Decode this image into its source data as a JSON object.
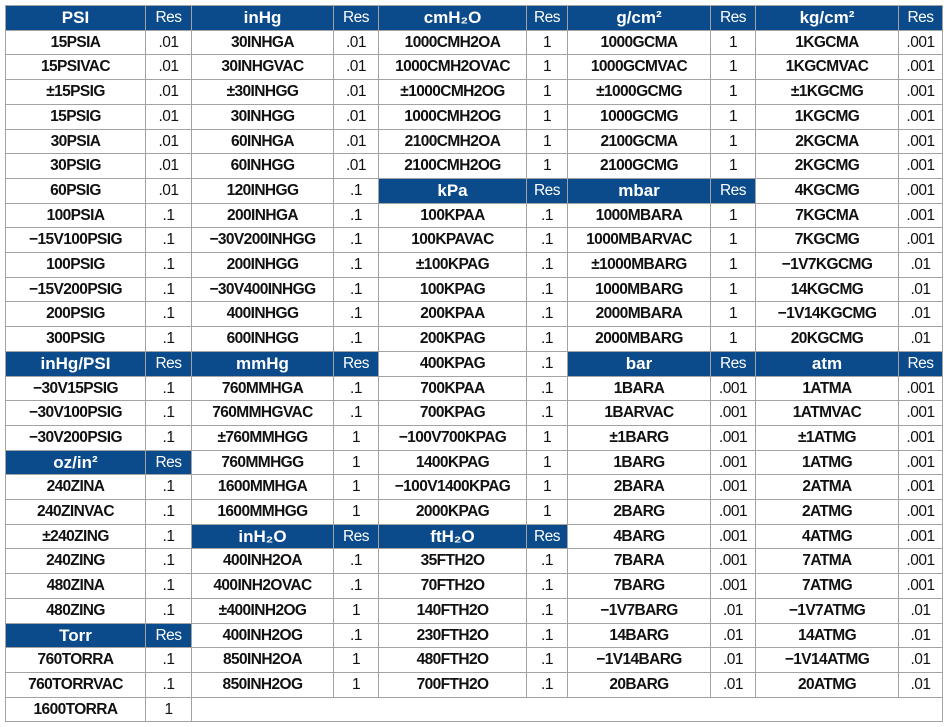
{
  "colors": {
    "header_bg": "#0b4b8c",
    "header_text": "#ffffff",
    "border": "#a3a3a3"
  },
  "groups": [
    {
      "cells": [
        {
          "h": "PSI",
          "r": "Res"
        },
        {
          "n": "15PSIA",
          "r": ".01"
        },
        {
          "n": "15PSIVAC",
          "r": ".01"
        },
        {
          "n": "±15PSIG",
          "r": ".01"
        },
        {
          "n": "15PSIG",
          "r": ".01"
        },
        {
          "n": "30PSIA",
          "r": ".01"
        },
        {
          "n": "30PSIG",
          "r": ".01"
        },
        {
          "n": "60PSIG",
          "r": ".01"
        },
        {
          "n": "100PSIA",
          "r": ".1"
        },
        {
          "n": "−15V100PSIG",
          "r": ".1"
        },
        {
          "n": "100PSIG",
          "r": ".1"
        },
        {
          "n": "−15V200PSIG",
          "r": ".1"
        },
        {
          "n": "200PSIG",
          "r": ".1"
        },
        {
          "n": "300PSIG",
          "r": ".1"
        },
        {
          "h": "inHg/PSI",
          "r": "Res"
        },
        {
          "n": "−30V15PSIG",
          "r": ".1"
        },
        {
          "n": "−30V100PSIG",
          "r": ".1"
        },
        {
          "n": "−30V200PSIG",
          "r": ".1"
        },
        {
          "h": "oz/in²",
          "r": "Res"
        },
        {
          "n": "240ZINA",
          "r": ".1"
        },
        {
          "n": "240ZINVAC",
          "r": ".1"
        },
        {
          "n": "±240ZING",
          "r": ".1"
        },
        {
          "n": "240ZING",
          "r": ".1"
        },
        {
          "n": "480ZINA",
          "r": ".1"
        },
        {
          "n": "480ZING",
          "r": ".1"
        },
        {
          "h": "Torr",
          "r": "Res"
        },
        {
          "n": "760TORRA",
          "r": ".1"
        },
        {
          "n": "760TORRVAC",
          "r": ".1"
        },
        {
          "n": "1600TORRA",
          "r": "1"
        }
      ]
    },
    {
      "cells": [
        {
          "h": "inHg",
          "r": "Res"
        },
        {
          "n": "30INHGA",
          "r": ".01"
        },
        {
          "n": "30INHGVAC",
          "r": ".01"
        },
        {
          "n": "±30INHGG",
          "r": ".01"
        },
        {
          "n": "30INHGG",
          "r": ".01"
        },
        {
          "n": "60INHGA",
          "r": ".01"
        },
        {
          "n": "60INHGG",
          "r": ".01"
        },
        {
          "n": "120INHGG",
          "r": ".1"
        },
        {
          "n": "200INHGA",
          "r": ".1"
        },
        {
          "n": "−30V200INHGG",
          "r": ".1"
        },
        {
          "n": "200INHGG",
          "r": ".1"
        },
        {
          "n": "−30V400INHGG",
          "r": ".1"
        },
        {
          "n": "400INHGG",
          "r": ".1"
        },
        {
          "n": "600INHGG",
          "r": ".1"
        },
        {
          "h": "mmHg",
          "r": "Res"
        },
        {
          "n": "760MMHGA",
          "r": ".1"
        },
        {
          "n": "760MMHGVAC",
          "r": ".1"
        },
        {
          "n": "±760MMHGG",
          "r": "1"
        },
        {
          "n": "760MMHGG",
          "r": "1"
        },
        {
          "n": "1600MMHGA",
          "r": "1"
        },
        {
          "n": "1600MMHGG",
          "r": "1"
        },
        {
          "h": "inH₂O",
          "r": "Res"
        },
        {
          "n": "400INH2OA",
          "r": ".1"
        },
        {
          "n": "400INH2OVAC",
          "r": ".1"
        },
        {
          "n": "±400INH2OG",
          "r": "1"
        },
        {
          "n": "400INH2OG",
          "r": ".1"
        },
        {
          "n": "850INH2OA",
          "r": "1"
        },
        {
          "n": "850INH2OG",
          "r": "1"
        }
      ]
    },
    {
      "cells": [
        {
          "h": "cmH₂O",
          "r": "Res"
        },
        {
          "n": "1000CMH2OA",
          "r": "1"
        },
        {
          "n": "1000CMH2OVAC",
          "r": "1"
        },
        {
          "n": "±1000CMH2OG",
          "r": "1"
        },
        {
          "n": "1000CMH2OG",
          "r": "1"
        },
        {
          "n": "2100CMH2OA",
          "r": "1"
        },
        {
          "n": "2100CMH2OG",
          "r": "1"
        },
        {
          "h": "kPa",
          "r": "Res"
        },
        {
          "n": "100KPAA",
          "r": ".1"
        },
        {
          "n": "100KPAVAC",
          "r": ".1"
        },
        {
          "n": "±100KPAG",
          "r": ".1"
        },
        {
          "n": "100KPAG",
          "r": ".1"
        },
        {
          "n": "200KPAA",
          "r": ".1"
        },
        {
          "n": "200KPAG",
          "r": ".1"
        },
        {
          "n": "400KPAG",
          "r": ".1"
        },
        {
          "n": "700KPAA",
          "r": ".1"
        },
        {
          "n": "700KPAG",
          "r": ".1"
        },
        {
          "n": "−100V700KPAG",
          "r": "1"
        },
        {
          "n": "1400KPAG",
          "r": "1"
        },
        {
          "n": "−100V1400KPAG",
          "r": "1"
        },
        {
          "n": "2000KPAG",
          "r": "1"
        },
        {
          "h": "ftH₂O",
          "r": "Res"
        },
        {
          "n": "35FTH2O",
          "r": ".1"
        },
        {
          "n": "70FTH2O",
          "r": ".1"
        },
        {
          "n": "140FTH2O",
          "r": ".1"
        },
        {
          "n": "230FTH2O",
          "r": ".1"
        },
        {
          "n": "480FTH2O",
          "r": ".1"
        },
        {
          "n": "700FTH2O",
          "r": ".1"
        }
      ]
    },
    {
      "cells": [
        {
          "h": "g/cm²",
          "r": "Res"
        },
        {
          "n": "1000GCMA",
          "r": "1"
        },
        {
          "n": "1000GCMVAC",
          "r": "1"
        },
        {
          "n": "±1000GCMG",
          "r": "1"
        },
        {
          "n": "1000GCMG",
          "r": "1"
        },
        {
          "n": "2100GCMA",
          "r": "1"
        },
        {
          "n": "2100GCMG",
          "r": "1"
        },
        {
          "h": "mbar",
          "r": "Res"
        },
        {
          "n": "1000MBARA",
          "r": "1"
        },
        {
          "n": "1000MBARVAC",
          "r": "1"
        },
        {
          "n": "±1000MBARG",
          "r": "1"
        },
        {
          "n": "1000MBARG",
          "r": "1"
        },
        {
          "n": "2000MBARA",
          "r": "1"
        },
        {
          "n": "2000MBARG",
          "r": "1"
        },
        {
          "h": "bar",
          "r": "Res"
        },
        {
          "n": "1BARA",
          "r": ".001"
        },
        {
          "n": "1BARVAC",
          "r": ".001"
        },
        {
          "n": "±1BARG",
          "r": ".001"
        },
        {
          "n": "1BARG",
          "r": ".001"
        },
        {
          "n": "2BARA",
          "r": ".001"
        },
        {
          "n": "2BARG",
          "r": ".001"
        },
        {
          "n": "4BARG",
          "r": ".001"
        },
        {
          "n": "7BARA",
          "r": ".001"
        },
        {
          "n": "7BARG",
          "r": ".001"
        },
        {
          "n": "−1V7BARG",
          "r": ".01"
        },
        {
          "n": "14BARG",
          "r": ".01"
        },
        {
          "n": "−1V14BARG",
          "r": ".01"
        },
        {
          "n": "20BARG",
          "r": ".01"
        }
      ]
    },
    {
      "cells": [
        {
          "h": "kg/cm²",
          "r": "Res"
        },
        {
          "n": "1KGCMA",
          "r": ".001"
        },
        {
          "n": "1KGCMVAC",
          "r": ".001"
        },
        {
          "n": "±1KGCMG",
          "r": ".001"
        },
        {
          "n": "1KGCMG",
          "r": ".001"
        },
        {
          "n": "2KGCMA",
          "r": ".001"
        },
        {
          "n": "2KGCMG",
          "r": ".001"
        },
        {
          "n": "4KGCMG",
          "r": ".001"
        },
        {
          "n": "7KGCMA",
          "r": ".001"
        },
        {
          "n": "7KGCMG",
          "r": ".001"
        },
        {
          "n": "−1V7KGCMG",
          "r": ".01"
        },
        {
          "n": "14KGCMG",
          "r": ".01"
        },
        {
          "n": "−1V14KGCMG",
          "r": ".01"
        },
        {
          "n": "20KGCMG",
          "r": ".01"
        },
        {
          "h": "atm",
          "r": "Res"
        },
        {
          "n": "1ATMA",
          "r": ".001"
        },
        {
          "n": "1ATMVAC",
          "r": ".001"
        },
        {
          "n": "±1ATMG",
          "r": ".001"
        },
        {
          "n": "1ATMG",
          "r": ".001"
        },
        {
          "n": "2ATMA",
          "r": ".001"
        },
        {
          "n": "2ATMG",
          "r": ".001"
        },
        {
          "n": "4ATMG",
          "r": ".001"
        },
        {
          "n": "7ATMA",
          "r": ".001"
        },
        {
          "n": "7ATMG",
          "r": ".001"
        },
        {
          "n": "−1V7ATMG",
          "r": ".01"
        },
        {
          "n": "14ATMG",
          "r": ".01"
        },
        {
          "n": "−1V14ATMG",
          "r": ".01"
        },
        {
          "n": "20ATMG",
          "r": ".01"
        }
      ]
    }
  ]
}
